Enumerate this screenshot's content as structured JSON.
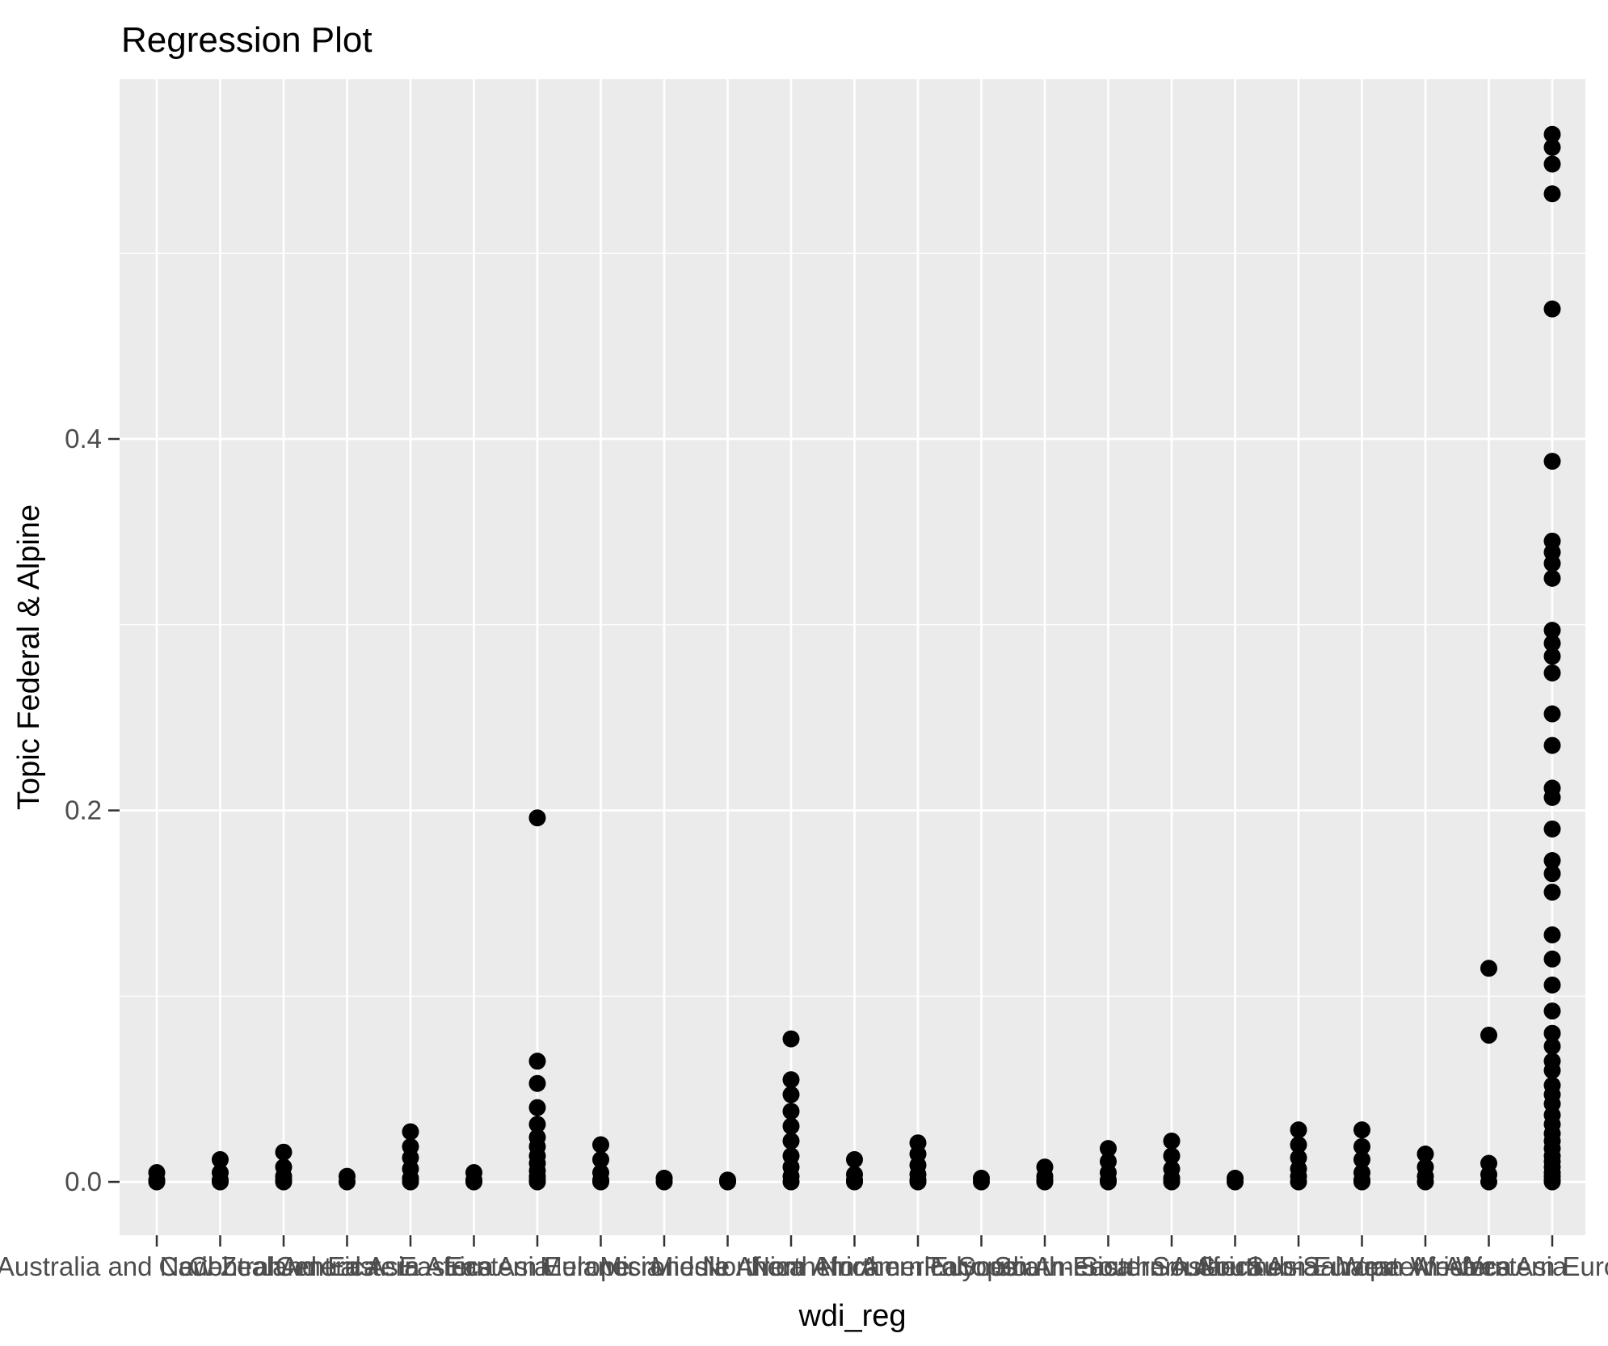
{
  "chart_data": {
    "type": "scatter",
    "title": "Regression Plot",
    "xlabel": "wdi_reg",
    "ylabel": "Topic Federal & Alpine",
    "ylim": [
      -0.029,
      0.594
    ],
    "yticks": [
      0.0,
      0.2,
      0.4
    ],
    "ytick_labels": [
      "0.0",
      "0.2",
      "0.4"
    ],
    "minor_yticks": [
      0.1,
      0.3,
      0.5
    ],
    "grid": "on",
    "legend_position": "none",
    "panel_color": "#EBEBEB",
    "grid_color": "#FFFFFF",
    "point_color": "#000000",
    "tick_color": "#333333",
    "tick_label_color": "#4D4D4D",
    "categories": [
      "Australia and New Zealand",
      "Caribbean",
      "Central America",
      "Central Asia",
      "Eastern Africa",
      "Eastern Asia",
      "Eastern Europe",
      "Melanesia",
      "Micronesia",
      "Middle Africa",
      "Northern Africa",
      "Northern America",
      "Northern Europe",
      "Polynesia",
      "South America",
      "South-Eastern Asia",
      "Southern Africa",
      "Southern Asia",
      "Southern Europe",
      "Sub-Saharan Africa",
      "Western Africa",
      "Western Asia",
      "Western Europe"
    ],
    "groups": [
      {
        "label": "Australia and New Zealand",
        "values": [
          0.005,
          0.001,
          0.0
        ]
      },
      {
        "label": "Caribbean",
        "values": [
          0.012,
          0.005,
          0.001,
          0.0
        ]
      },
      {
        "label": "Central America",
        "values": [
          0.016,
          0.008,
          0.003,
          0.001,
          0.0
        ]
      },
      {
        "label": "Central Asia",
        "values": [
          0.003,
          0.0
        ]
      },
      {
        "label": "Eastern Africa",
        "values": [
          0.027,
          0.019,
          0.013,
          0.007,
          0.002,
          0.0
        ]
      },
      {
        "label": "Eastern Asia",
        "values": [
          0.005,
          0.001,
          0.0
        ]
      },
      {
        "label": "Eastern Europe",
        "values": [
          0.196,
          0.065,
          0.053,
          0.04,
          0.031,
          0.024,
          0.019,
          0.014,
          0.01,
          0.006,
          0.003,
          0.001,
          0.0
        ]
      },
      {
        "label": "Melanesia",
        "values": [
          0.02,
          0.012,
          0.005,
          0.001,
          0.0
        ]
      },
      {
        "label": "Micronesia",
        "values": [
          0.002,
          0.0
        ]
      },
      {
        "label": "Middle Africa",
        "values": [
          0.001,
          0.0
        ]
      },
      {
        "label": "Northern Africa",
        "values": [
          0.077,
          0.055,
          0.047,
          0.038,
          0.03,
          0.022,
          0.014,
          0.008,
          0.003,
          0.0
        ]
      },
      {
        "label": "Northern America",
        "values": [
          0.012,
          0.004,
          0.001,
          0.0
        ]
      },
      {
        "label": "Northern Europe",
        "values": [
          0.021,
          0.015,
          0.009,
          0.004,
          0.001,
          0.0
        ]
      },
      {
        "label": "Polynesia",
        "values": [
          0.002,
          0.0
        ]
      },
      {
        "label": "South America",
        "values": [
          0.008,
          0.003,
          0.001,
          0.0
        ]
      },
      {
        "label": "South-Eastern Asia",
        "values": [
          0.018,
          0.011,
          0.005,
          0.001,
          0.0
        ]
      },
      {
        "label": "Southern Africa",
        "values": [
          0.022,
          0.014,
          0.007,
          0.002,
          0.0
        ]
      },
      {
        "label": "Southern Asia",
        "values": [
          0.002,
          0.0
        ]
      },
      {
        "label": "Southern Europe",
        "values": [
          0.028,
          0.02,
          0.013,
          0.007,
          0.003,
          0.0
        ]
      },
      {
        "label": "Sub-Saharan Africa",
        "values": [
          0.028,
          0.019,
          0.012,
          0.005,
          0.001,
          0.0
        ]
      },
      {
        "label": "Western Africa",
        "values": [
          0.015,
          0.008,
          0.003,
          0.0
        ]
      },
      {
        "label": "Western Asia",
        "values": [
          0.115,
          0.079,
          0.01,
          0.004,
          0.0
        ]
      },
      {
        "label": "Western Europe",
        "values": [
          0.564,
          0.557,
          0.548,
          0.532,
          0.47,
          0.388,
          0.345,
          0.339,
          0.333,
          0.325,
          0.297,
          0.29,
          0.283,
          0.274,
          0.252,
          0.235,
          0.212,
          0.207,
          0.19,
          0.173,
          0.166,
          0.156,
          0.133,
          0.12,
          0.106,
          0.092,
          0.08,
          0.073,
          0.065,
          0.06,
          0.052,
          0.047,
          0.042,
          0.036,
          0.031,
          0.026,
          0.022,
          0.018,
          0.014,
          0.011,
          0.008,
          0.005,
          0.003,
          0.001,
          0.0
        ]
      }
    ]
  }
}
